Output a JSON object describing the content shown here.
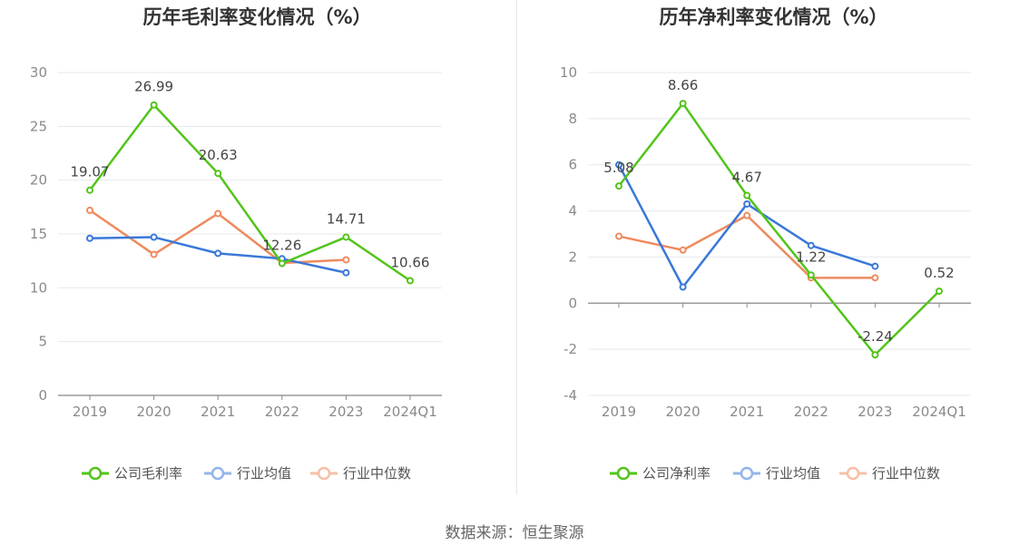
{
  "chart_data": [
    {
      "type": "line",
      "title": "历年毛利率变化情况（%）",
      "categories": [
        "2019",
        "2020",
        "2021",
        "2022",
        "2023",
        "2024Q1"
      ],
      "ylim": [
        0,
        30
      ],
      "yticks": [
        "0",
        "5",
        "10",
        "15",
        "20",
        "25",
        "30"
      ],
      "grid": true,
      "legend_position": "bottom",
      "series": [
        {
          "name": "公司毛利率",
          "color": "#52c41a",
          "values": [
            19.07,
            26.99,
            20.63,
            12.26,
            14.71,
            10.66
          ],
          "labels": [
            "19.07",
            "26.99",
            "20.63",
            "12.26",
            "14.71",
            "10.66"
          ]
        },
        {
          "name": "行业均值",
          "color": "#3a78d8",
          "values": [
            14.6,
            14.7,
            13.2,
            12.7,
            11.4,
            null
          ]
        },
        {
          "name": "行业中位数",
          "color": "#ee8a5e",
          "values": [
            17.2,
            13.1,
            16.9,
            12.3,
            12.6,
            null
          ]
        }
      ]
    },
    {
      "type": "line",
      "title": "历年净利率变化情况（%）",
      "categories": [
        "2019",
        "2020",
        "2021",
        "2022",
        "2023",
        "2024Q1"
      ],
      "ylim": [
        -4,
        10
      ],
      "yticks": [
        "-4",
        "-2",
        "0",
        "2",
        "4",
        "6",
        "8",
        "10"
      ],
      "grid": true,
      "legend_position": "bottom",
      "series": [
        {
          "name": "公司净利率",
          "color": "#52c41a",
          "values": [
            5.08,
            8.66,
            4.67,
            1.22,
            -2.24,
            0.52
          ],
          "labels": [
            "5.08",
            "8.66",
            "4.67",
            "1.22",
            "-2.24",
            "0.52"
          ]
        },
        {
          "name": "行业均值",
          "color": "#3a78d8",
          "values": [
            6.0,
            0.7,
            4.3,
            2.5,
            1.6,
            null
          ]
        },
        {
          "name": "行业中位数",
          "color": "#ee8a5e",
          "values": [
            2.9,
            2.3,
            3.8,
            1.1,
            1.1,
            null
          ]
        }
      ]
    }
  ],
  "footer": {
    "source": "数据来源：恒生聚源"
  }
}
